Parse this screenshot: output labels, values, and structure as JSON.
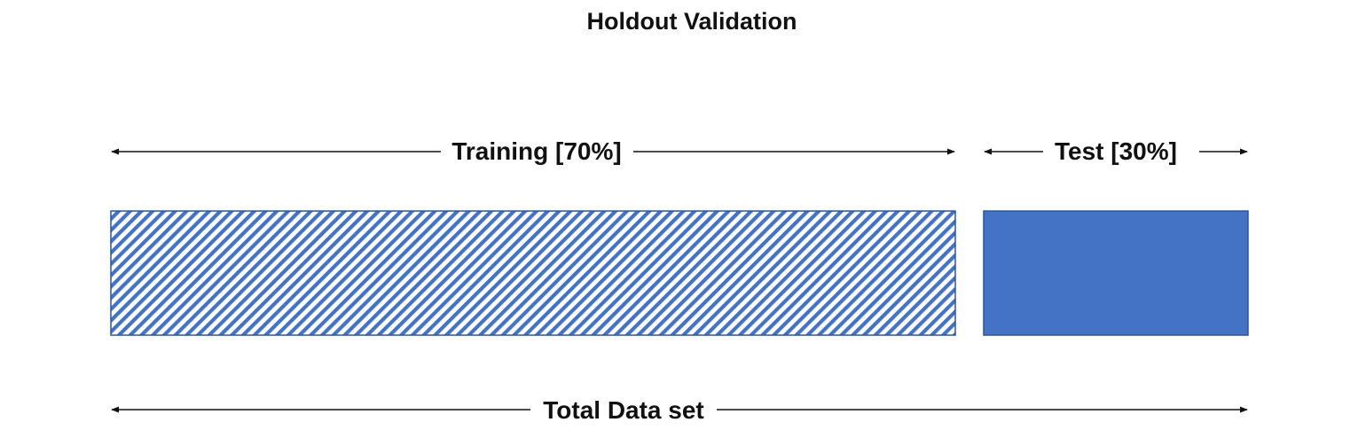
{
  "title": "Holdout Validation",
  "segments": [
    {
      "key": "training",
      "label": "Training [70%]",
      "fraction": 0.7,
      "fill": "hatched",
      "color": "#4472c4"
    },
    {
      "key": "test",
      "label": "Test [30%]",
      "fraction": 0.3,
      "fill": "solid",
      "color": "#4472c4"
    }
  ],
  "total_label": "Total Data set",
  "colors": {
    "accent": "#4472c4",
    "border": "#2f5597",
    "text": "#111111",
    "background": "#ffffff"
  }
}
